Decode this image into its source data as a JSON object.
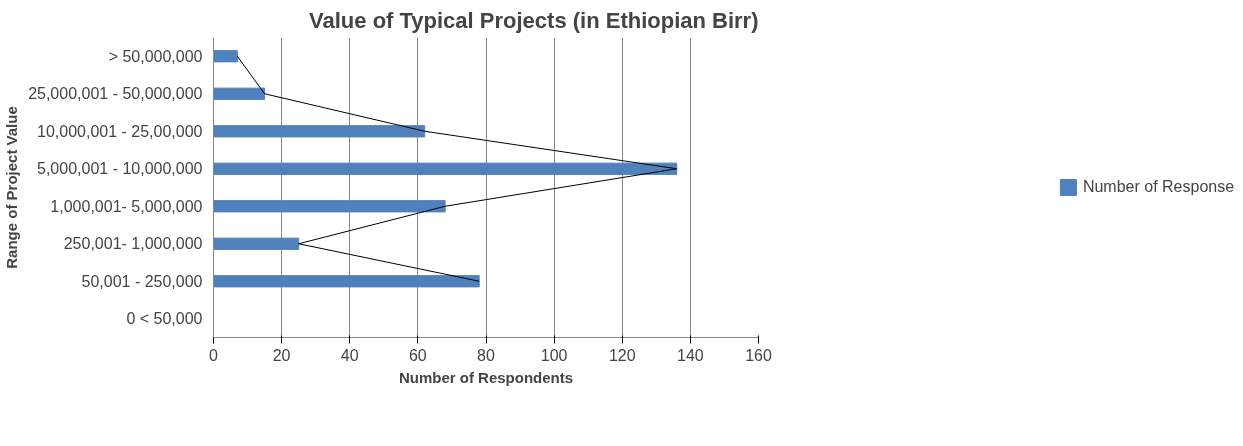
{
  "chart_data": {
    "type": "bar",
    "orientation": "horizontal",
    "title": "Value of Typical Projects (in Ethiopian Birr)",
    "xlabel": "Number of Respondents",
    "ylabel": "Range of Project Value",
    "categories": [
      "> 50,000,000",
      "25,000,001 - 50,000,000",
      "10,000,001 - 25,00,000",
      "5,000,001 - 10,000,000",
      "1,000,001- 5,000,000",
      "250,001- 1,000,000",
      "50,001 - 250,000",
      "0 < 50,000"
    ],
    "series": [
      {
        "name": "Number of Response",
        "color": "#4f81bd",
        "values": [
          7,
          15,
          62,
          136,
          68,
          25,
          78,
          0
        ]
      },
      {
        "type": "line",
        "color": "#000000",
        "values": [
          7,
          15,
          62,
          136,
          68,
          25,
          78,
          null
        ]
      }
    ],
    "xlim": [
      0,
      160
    ],
    "xticks": [
      0,
      20,
      40,
      60,
      80,
      100,
      120,
      140,
      160
    ],
    "grid": "x",
    "legend": "right"
  }
}
